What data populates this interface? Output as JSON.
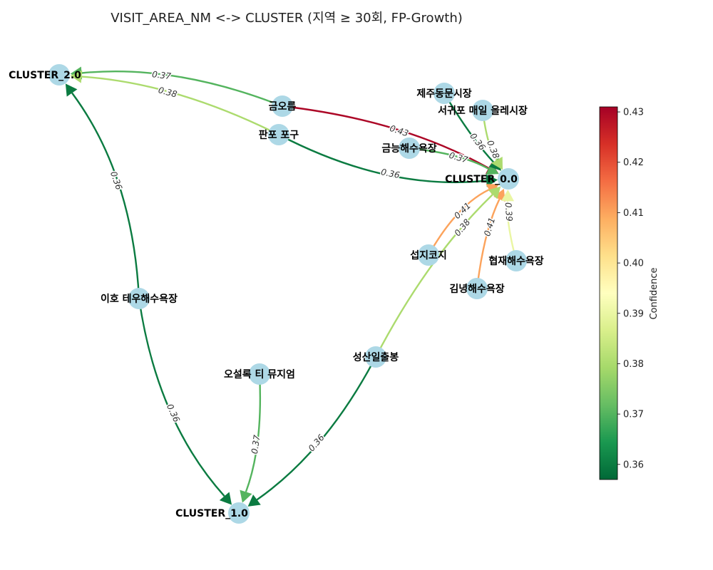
{
  "title": "VISIT_AREA_NM <-> CLUSTER  (지역 ≥ 30회, FP-Growth)",
  "colorbar": {
    "label": "Confidence",
    "min": 0.357,
    "max": 0.431,
    "ticks": [
      0.36,
      0.37,
      0.38,
      0.39,
      0.4,
      0.41,
      0.42,
      0.43
    ],
    "tick_labels": [
      "0.36",
      "0.37",
      "0.38",
      "0.39",
      "0.40",
      "0.41",
      "0.42",
      "0.43"
    ],
    "colormap": "RdYlGn_r"
  },
  "nodes": [
    {
      "id": "c2",
      "label": "CLUSTER_2.0"
    },
    {
      "id": "c0",
      "label": "CLUSTER_0.0"
    },
    {
      "id": "c1",
      "label": "CLUSTER_1.0"
    },
    {
      "id": "geumoreum",
      "label": "금오름"
    },
    {
      "id": "panpo",
      "label": "판포 포구"
    },
    {
      "id": "jeju_dongmun",
      "label": "제주동문시장"
    },
    {
      "id": "seogwipo",
      "label": "서귀포 매일 올레시장"
    },
    {
      "id": "geumneung",
      "label": "금능해수욕장"
    },
    {
      "id": "seopjikoji",
      "label": "섭지코지"
    },
    {
      "id": "hyeopjae",
      "label": "협재해수욕장"
    },
    {
      "id": "gimnyeong",
      "label": "김녕해수욕장"
    },
    {
      "id": "iho",
      "label": "이호 테우해수욕장"
    },
    {
      "id": "seongsan",
      "label": "성산일출봉"
    },
    {
      "id": "osulloc",
      "label": "오설록 티 뮤지엄"
    }
  ],
  "edges": [
    {
      "source": "geumoreum",
      "target": "c2",
      "confidence": 0.37,
      "label": "0.37"
    },
    {
      "source": "panpo",
      "target": "c2",
      "confidence": 0.38,
      "label": "0.38"
    },
    {
      "source": "iho",
      "target": "c2",
      "confidence": 0.36,
      "label": "0.36"
    },
    {
      "source": "geumoreum",
      "target": "c0",
      "confidence": 0.43,
      "label": "0.43"
    },
    {
      "source": "panpo",
      "target": "c0",
      "confidence": 0.36,
      "label": "0.36"
    },
    {
      "source": "geumneung",
      "target": "c0",
      "confidence": 0.37,
      "label": "0.37"
    },
    {
      "source": "jeju_dongmun",
      "target": "c0",
      "confidence": 0.36,
      "label": "0.36"
    },
    {
      "source": "seogwipo",
      "target": "c0",
      "confidence": 0.38,
      "label": "0.38"
    },
    {
      "source": "seopjikoji",
      "target": "c0",
      "confidence": 0.41,
      "label": "0.41"
    },
    {
      "source": "gimnyeong",
      "target": "c0",
      "confidence": 0.41,
      "label": "0.41"
    },
    {
      "source": "hyeopjae",
      "target": "c0",
      "confidence": 0.39,
      "label": "0.39"
    },
    {
      "source": "seongsan",
      "target": "c0",
      "confidence": 0.38,
      "label": "0.38"
    },
    {
      "source": "iho",
      "target": "c1",
      "confidence": 0.36,
      "label": "0.36"
    },
    {
      "source": "osulloc",
      "target": "c1",
      "confidence": 0.37,
      "label": "0.37"
    },
    {
      "source": "seongsan",
      "target": "c1",
      "confidence": 0.36,
      "label": "0.36"
    }
  ]
}
